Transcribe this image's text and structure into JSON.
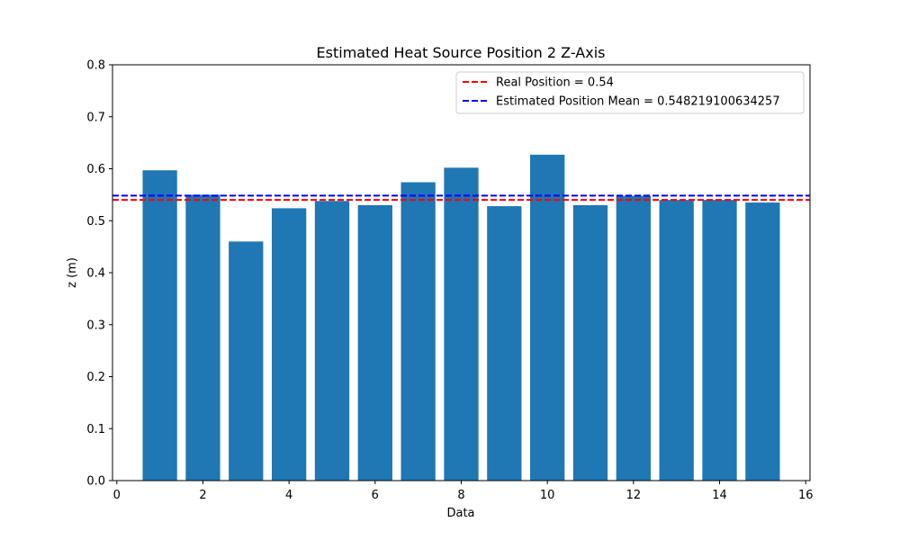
{
  "chart_data": {
    "type": "bar",
    "title": "Estimated Heat Source Position 2 Z-Axis",
    "xlabel": "Data",
    "ylabel": "z (m)",
    "xlim": [
      -0.1,
      16.1
    ],
    "ylim": [
      0,
      0.8
    ],
    "xticks": [
      0,
      2,
      4,
      6,
      8,
      10,
      12,
      14,
      16
    ],
    "yticks": [
      0.0,
      0.1,
      0.2,
      0.3,
      0.4,
      0.5,
      0.6,
      0.7,
      0.8
    ],
    "ytick_labels": [
      "0.0",
      "0.1",
      "0.2",
      "0.3",
      "0.4",
      "0.5",
      "0.6",
      "0.7",
      "0.8"
    ],
    "bar_color": "#1f77b4",
    "bar_width": 0.8,
    "x": [
      1,
      2,
      3,
      4,
      5,
      6,
      7,
      8,
      9,
      10,
      11,
      12,
      13,
      14,
      15
    ],
    "values": [
      0.597,
      0.55,
      0.46,
      0.524,
      0.538,
      0.53,
      0.574,
      0.602,
      0.528,
      0.627,
      0.53,
      0.548,
      0.54,
      0.54,
      0.535
    ],
    "hlines": [
      {
        "name": "Real Position = 0.54",
        "y": 0.54,
        "color": "#ff0000",
        "style": "dashed"
      },
      {
        "name": "Estimated Position Mean = 0.548219100634257",
        "y": 0.548219100634257,
        "color": "#0000ff",
        "style": "dashed"
      }
    ],
    "legend_position": "top-right",
    "grid": false
  }
}
